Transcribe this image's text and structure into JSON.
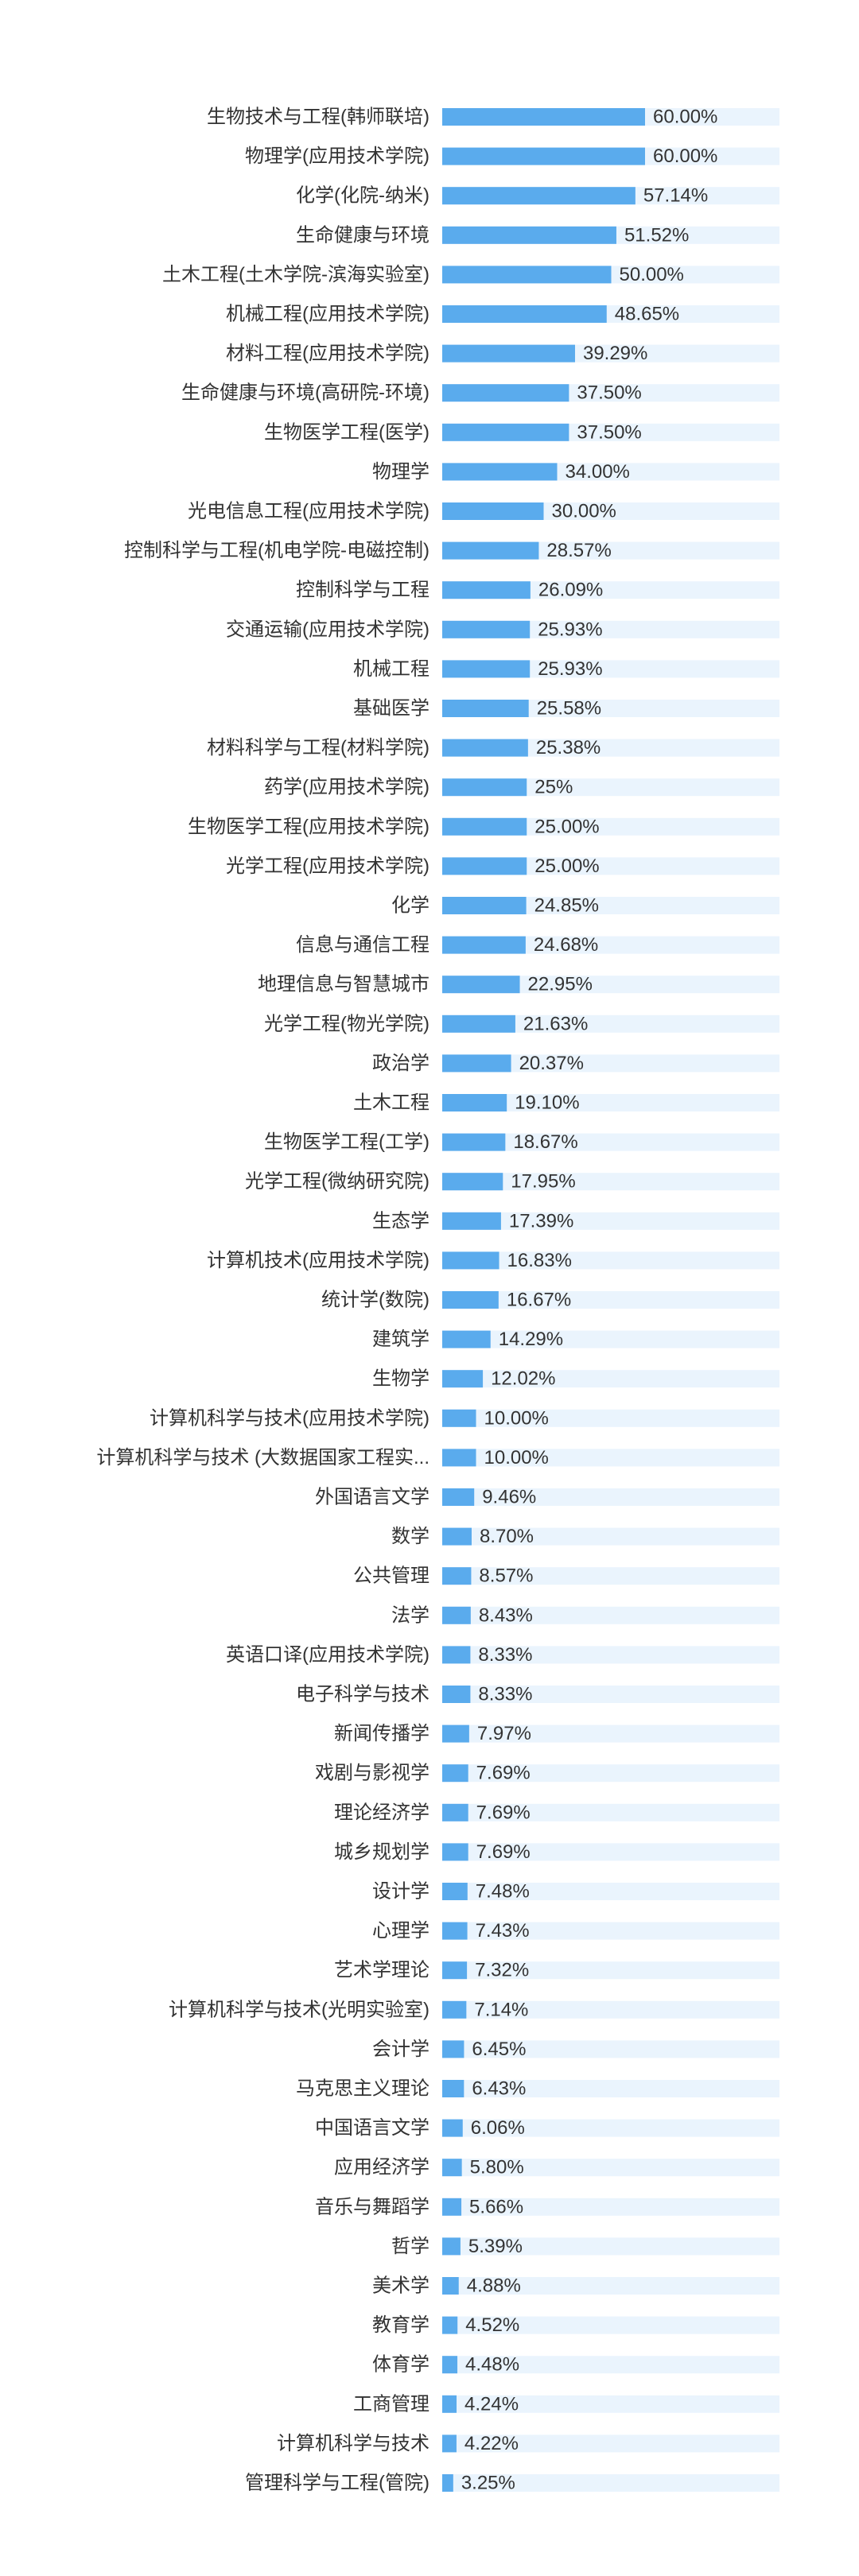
{
  "chart_data": {
    "type": "bar",
    "orientation": "horizontal",
    "xlim": [
      0,
      100
    ],
    "colors": {
      "bar": "#5aabed",
      "track": "#eaf4fd",
      "label": "#333333"
    },
    "categories": [
      "生物技术与工程(韩师联培)",
      "物理学(应用技术学院)",
      "化学(化院-纳米)",
      "生命健康与环境",
      "土木工程(土木学院-滨海实验室)",
      "机械工程(应用技术学院)",
      "材料工程(应用技术学院)",
      "生命健康与环境(高研院-环境)",
      "生物医学工程(医学)",
      "物理学",
      "光电信息工程(应用技术学院)",
      "控制科学与工程(机电学院-电磁控制)",
      "控制科学与工程",
      "交通运输(应用技术学院)",
      "机械工程",
      "基础医学",
      "材料科学与工程(材料学院)",
      "药学(应用技术学院)",
      "生物医学工程(应用技术学院)",
      "光学工程(应用技术学院)",
      "化学",
      "信息与通信工程",
      "地理信息与智慧城市",
      "光学工程(物光学院)",
      "政治学",
      "土木工程",
      "生物医学工程(工学)",
      "光学工程(微纳研究院)",
      "生态学",
      "计算机技术(应用技术学院)",
      "统计学(数院)",
      "建筑学",
      "生物学",
      "计算机科学与技术(应用技术学院)",
      "计算机科学与技术 (大数据国家工程实...",
      "外国语言文学",
      "数学",
      "公共管理",
      "法学",
      "英语口译(应用技术学院)",
      "电子科学与技术",
      "新闻传播学",
      "戏剧与影视学",
      "理论经济学",
      "城乡规划学",
      "设计学",
      "心理学",
      "艺术学理论",
      "计算机科学与技术(光明实验室)",
      "会计学",
      "马克思主义理论",
      "中国语言文学",
      "应用经济学",
      "音乐与舞蹈学",
      "哲学",
      "美术学",
      "教育学",
      "体育学",
      "工商管理",
      "计算机科学与技术",
      "管理科学与工程(管院)"
    ],
    "values": [
      60.0,
      60.0,
      57.14,
      51.52,
      50.0,
      48.65,
      39.29,
      37.5,
      37.5,
      34.0,
      30.0,
      28.57,
      26.09,
      25.93,
      25.93,
      25.58,
      25.38,
      25,
      25.0,
      25.0,
      24.85,
      24.68,
      22.95,
      21.63,
      20.37,
      19.1,
      18.67,
      17.95,
      17.39,
      16.83,
      16.67,
      14.29,
      12.02,
      10.0,
      10.0,
      9.46,
      8.7,
      8.57,
      8.43,
      8.33,
      8.33,
      7.97,
      7.69,
      7.69,
      7.69,
      7.48,
      7.43,
      7.32,
      7.14,
      6.45,
      6.43,
      6.06,
      5.8,
      5.66,
      5.39,
      4.88,
      4.52,
      4.48,
      4.24,
      4.22,
      3.25
    ],
    "value_labels": [
      "60.00%",
      "60.00%",
      "57.14%",
      "51.52%",
      "50.00%",
      "48.65%",
      "39.29%",
      "37.50%",
      "37.50%",
      "34.00%",
      "30.00%",
      "28.57%",
      "26.09%",
      "25.93%",
      "25.93%",
      "25.58%",
      "25.38%",
      "25%",
      "25.00%",
      "25.00%",
      "24.85%",
      "24.68%",
      "22.95%",
      "21.63%",
      "20.37%",
      "19.10%",
      "18.67%",
      "17.95%",
      "17.39%",
      "16.83%",
      "16.67%",
      "14.29%",
      "12.02%",
      "10.00%",
      "10.00%",
      "9.46%",
      "8.70%",
      "8.57%",
      "8.43%",
      "8.33%",
      "8.33%",
      "7.97%",
      "7.69%",
      "7.69%",
      "7.69%",
      "7.48%",
      "7.43%",
      "7.32%",
      "7.14%",
      "6.45%",
      "6.43%",
      "6.06%",
      "5.80%",
      "5.66%",
      "5.39%",
      "4.88%",
      "4.52%",
      "4.48%",
      "4.24%",
      "4.22%",
      "3.25%"
    ]
  }
}
